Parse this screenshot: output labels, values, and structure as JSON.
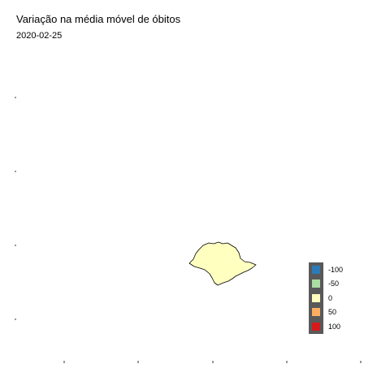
{
  "title": "Variação na média móvel de óbitos",
  "subtitle": "2020-02-25",
  "map": {
    "region_fill": "#ffffbf",
    "region_stroke": "#000000"
  },
  "legend": {
    "items": [
      {
        "label": "-100",
        "color": "#2c7bb6"
      },
      {
        "label": "-50",
        "color": "#abdda4"
      },
      {
        "label": "0",
        "color": "#ffffbf"
      },
      {
        "label": "50",
        "color": "#fdae61"
      },
      {
        "label": "100",
        "color": "#d7191c"
      }
    ]
  }
}
